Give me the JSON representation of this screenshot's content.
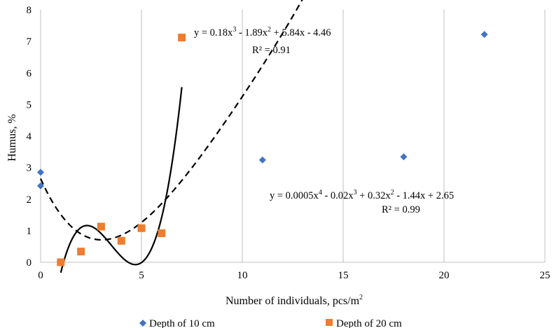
{
  "chart_data": {
    "type": "scatter",
    "xlabel_main": "Number of individuals, pcs/m",
    "xlabel_sup": "2",
    "ylabel": "Humus, %",
    "xlim": [
      0,
      25
    ],
    "ylim": [
      0,
      8
    ],
    "xticks": [
      0,
      5,
      10,
      15,
      20,
      25
    ],
    "yticks": [
      0,
      1,
      2,
      3,
      4,
      5,
      6,
      7,
      8
    ],
    "grid": "vertical",
    "legend_position": "bottom",
    "series": [
      {
        "name": "Depth of 10 cm",
        "marker": "diamond",
        "color": "#4472C4",
        "x": [
          0,
          0,
          11,
          18,
          22
        ],
        "y": [
          2.85,
          2.42,
          3.24,
          3.34,
          7.22
        ],
        "trendline": {
          "type": "polynomial",
          "order": 4,
          "style": "dashed",
          "coefficients": [
            0.0005,
            -0.02,
            0.32,
            -1.44,
            2.65
          ],
          "x_range": [
            0,
            22
          ],
          "equation": [
            {
              "t": "y = 0.0005x"
            },
            {
              "sup": "4"
            },
            {
              "t": " - 0.02x"
            },
            {
              "sup": "3"
            },
            {
              "t": " + 0.32x"
            },
            {
              "sup": "2"
            },
            {
              "t": " - 1.44x + 2.65"
            }
          ],
          "r2": "R² = 0.99"
        }
      },
      {
        "name": "Depth of 20 cm",
        "marker": "square",
        "color": "#ED7D31",
        "x": [
          1,
          2,
          3,
          4,
          5,
          6,
          7
        ],
        "y": [
          0.0,
          0.34,
          1.13,
          0.68,
          1.08,
          0.92,
          7.12
        ],
        "trendline": {
          "type": "polynomial",
          "order": 3,
          "style": "solid",
          "coefficients": [
            0.18,
            -1.89,
            5.84,
            -4.46
          ],
          "x_range": [
            1,
            7
          ],
          "equation": [
            {
              "t": "y = 0.18x"
            },
            {
              "sup": "3"
            },
            {
              "t": " - 1.89x"
            },
            {
              "sup": "2"
            },
            {
              "t": " + 5.84x - 4.46"
            }
          ],
          "r2": "R² = 0.91"
        }
      }
    ]
  }
}
